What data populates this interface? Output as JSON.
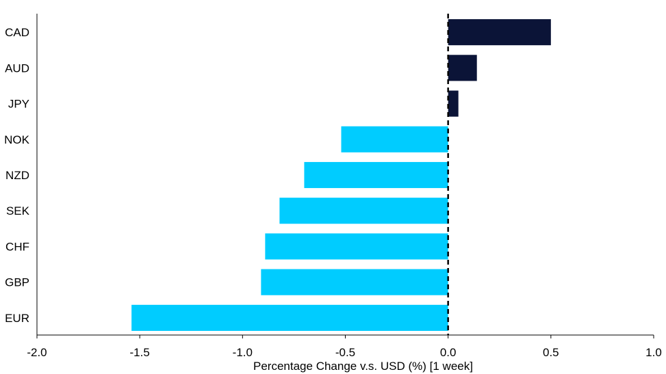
{
  "chart_data": {
    "type": "bar",
    "orientation": "horizontal",
    "categories": [
      "CAD",
      "AUD",
      "JPY",
      "NOK",
      "NZD",
      "SEK",
      "CHF",
      "GBP",
      "EUR"
    ],
    "values": [
      0.5,
      0.14,
      0.05,
      -0.52,
      -0.7,
      -0.82,
      -0.89,
      -0.91,
      -1.54
    ],
    "xlabel": "Percentage Change v.s. USD (%) [1 week]",
    "xlim": [
      -2.0,
      1.0
    ],
    "xticks": [
      -2.0,
      -1.5,
      -1.0,
      -0.5,
      0.0,
      0.5,
      1.0
    ],
    "xtick_labels": [
      "-2.0",
      "-1.5",
      "-1.0",
      "-0.5",
      "0.0",
      "0.5",
      "1.0"
    ],
    "zero_line": "dashed",
    "grid": false,
    "colors": {
      "positive": "#0b1437",
      "negative": "#00ccff"
    }
  }
}
